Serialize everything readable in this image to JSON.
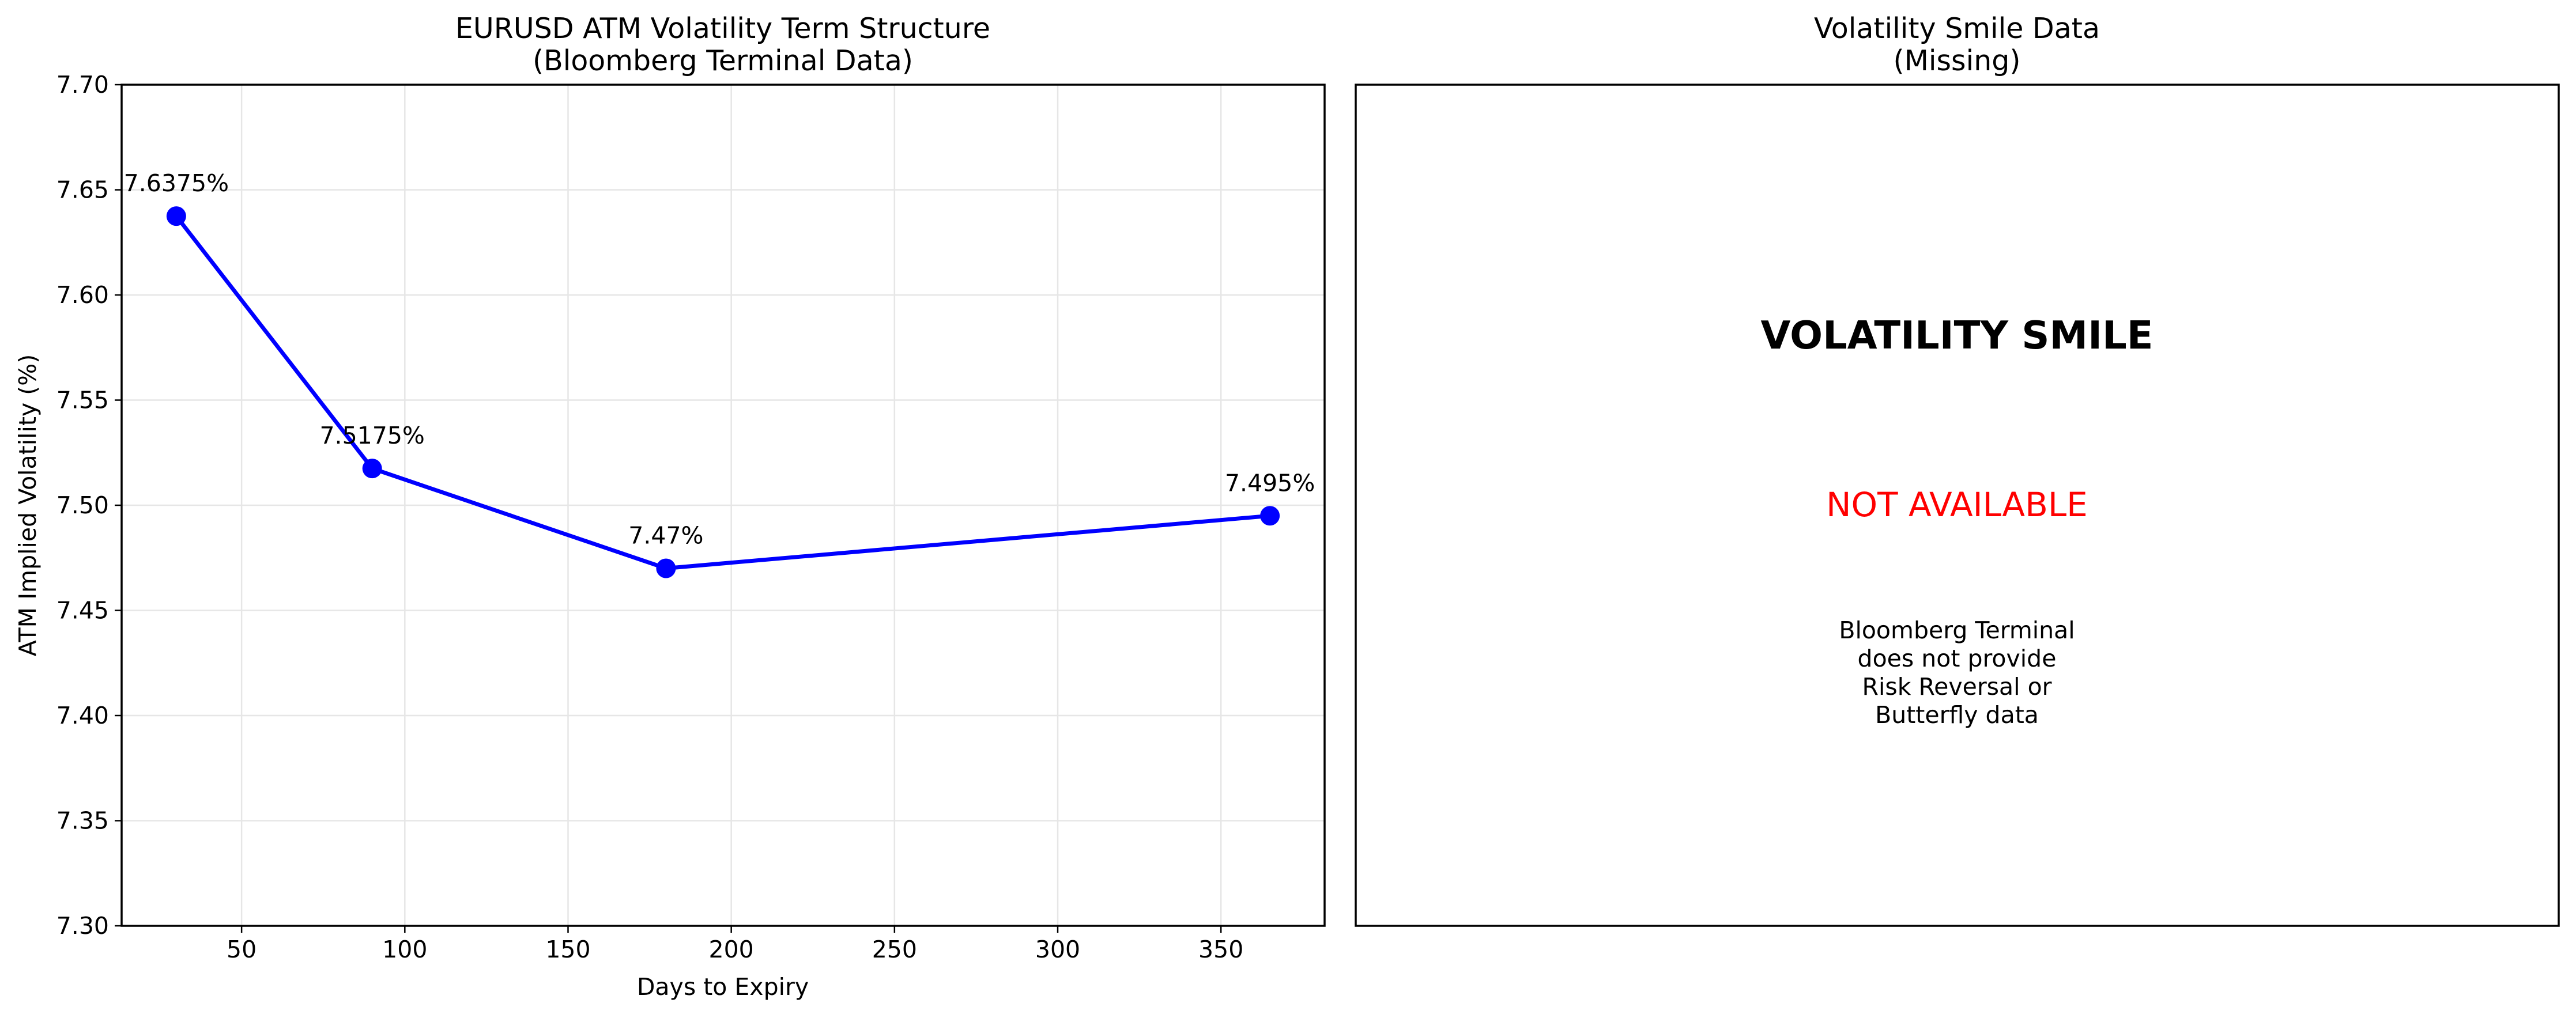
{
  "colors": {
    "series_line": "#0000ff",
    "marker": "#0000ff",
    "not_available": "#ff0000",
    "grid": "#e6e6e6",
    "axes": "#000000"
  },
  "chart_data": [
    {
      "type": "line",
      "title": "EURUSD ATM Volatility Term Structure",
      "subtitle": "(Bloomberg Terminal Data)",
      "xlabel": "Days to Expiry",
      "ylabel": "ATM Implied Volatility (%)",
      "x": [
        30,
        90,
        180,
        365
      ],
      "series": [
        {
          "values": [
            7.6375,
            7.5175,
            7.47,
            7.495
          ]
        }
      ],
      "data_labels": [
        "7.6375%",
        "7.5175%",
        "7.47%",
        "7.495%"
      ],
      "xlim": [
        13.25,
        381.75
      ],
      "ylim": [
        7.3,
        7.7
      ],
      "xticks": [
        50,
        100,
        150,
        200,
        250,
        300,
        350
      ],
      "yticks": [
        7.3,
        7.35,
        7.4,
        7.45,
        7.5,
        7.55,
        7.6,
        7.65,
        7.7
      ],
      "ytick_labels": [
        "7.30",
        "7.35",
        "7.40",
        "7.45",
        "7.50",
        "7.55",
        "7.60",
        "7.65",
        "7.70"
      ],
      "grid": true,
      "legend": "none"
    },
    {
      "type": "text",
      "title": "Volatility Smile Data",
      "subtitle": "(Missing)",
      "headline": "VOLATILITY SMILE",
      "status": "NOT AVAILABLE",
      "note_lines": [
        "Bloomberg Terminal",
        "does not provide",
        "Risk Reversal or",
        "Butterfly data"
      ]
    }
  ]
}
